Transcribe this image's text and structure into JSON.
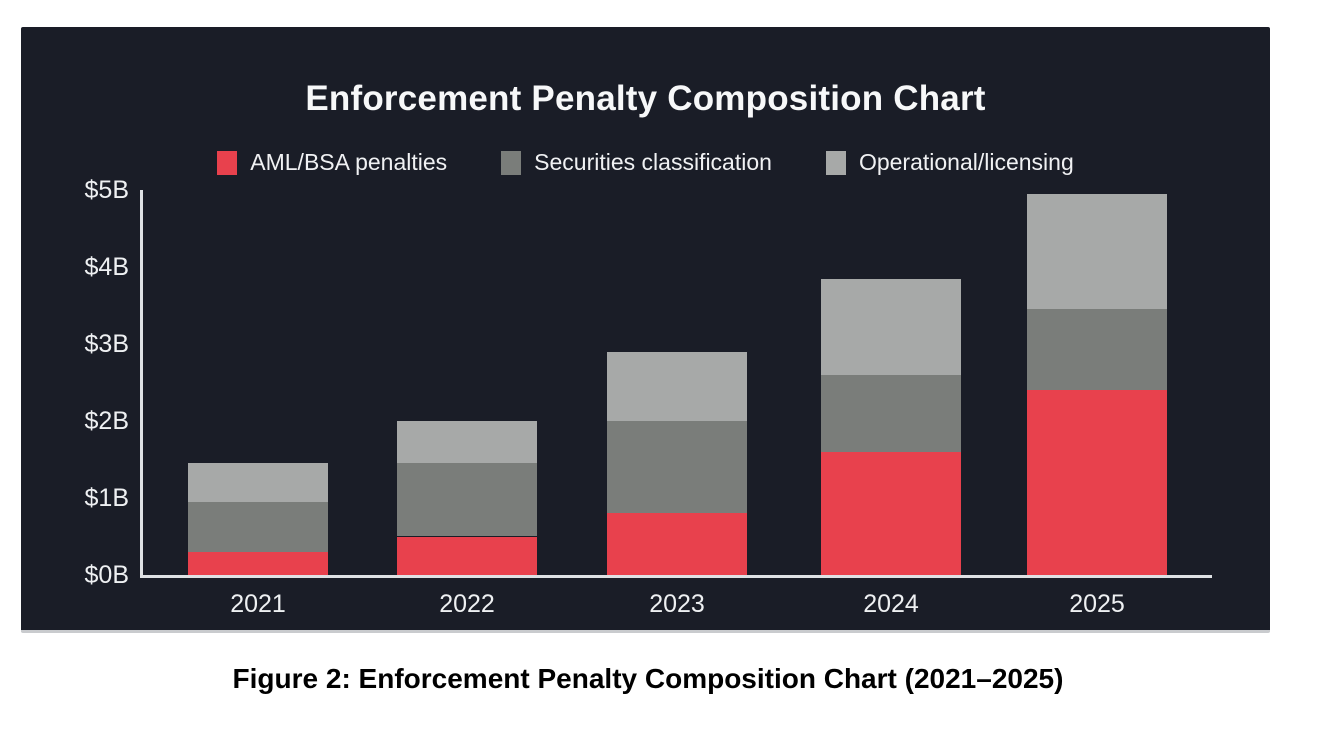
{
  "caption": "Figure 2: Enforcement Penalty Composition Chart (2021–2025)",
  "colors": {
    "page_background": "#ffffff",
    "panel_background": "#1a1d27",
    "axis_line": "#dfe1e4",
    "axis_text": "#eef0f2",
    "title_text": "#f7f8f9",
    "caption_text": "#000000"
  },
  "chart_data": {
    "type": "bar",
    "stacked": true,
    "title": "Enforcement Penalty Composition Chart",
    "categories": [
      "2021",
      "2022",
      "2023",
      "2024",
      "2025"
    ],
    "series": [
      {
        "name": "AML/BSA penalties",
        "color": "#e8414d",
        "values": [
          0.3,
          0.5,
          0.8,
          1.6,
          2.4
        ]
      },
      {
        "name": "Securities classification",
        "color": "#7a7d7a",
        "values": [
          0.65,
          0.95,
          1.2,
          1.0,
          1.05
        ]
      },
      {
        "name": "Operational/licensing",
        "color": "#a7a9a8",
        "values": [
          0.5,
          0.55,
          0.9,
          1.25,
          1.5
        ]
      }
    ],
    "totals": [
      1.45,
      2.0,
      2.9,
      3.85,
      4.95
    ],
    "xlabel": "",
    "ylabel": "",
    "ylim": [
      0,
      5
    ],
    "y_ticks": [
      "$0B",
      "$1B",
      "$2B",
      "$3B",
      "$4B",
      "$5B"
    ],
    "grid": false,
    "legend_position": "top"
  }
}
